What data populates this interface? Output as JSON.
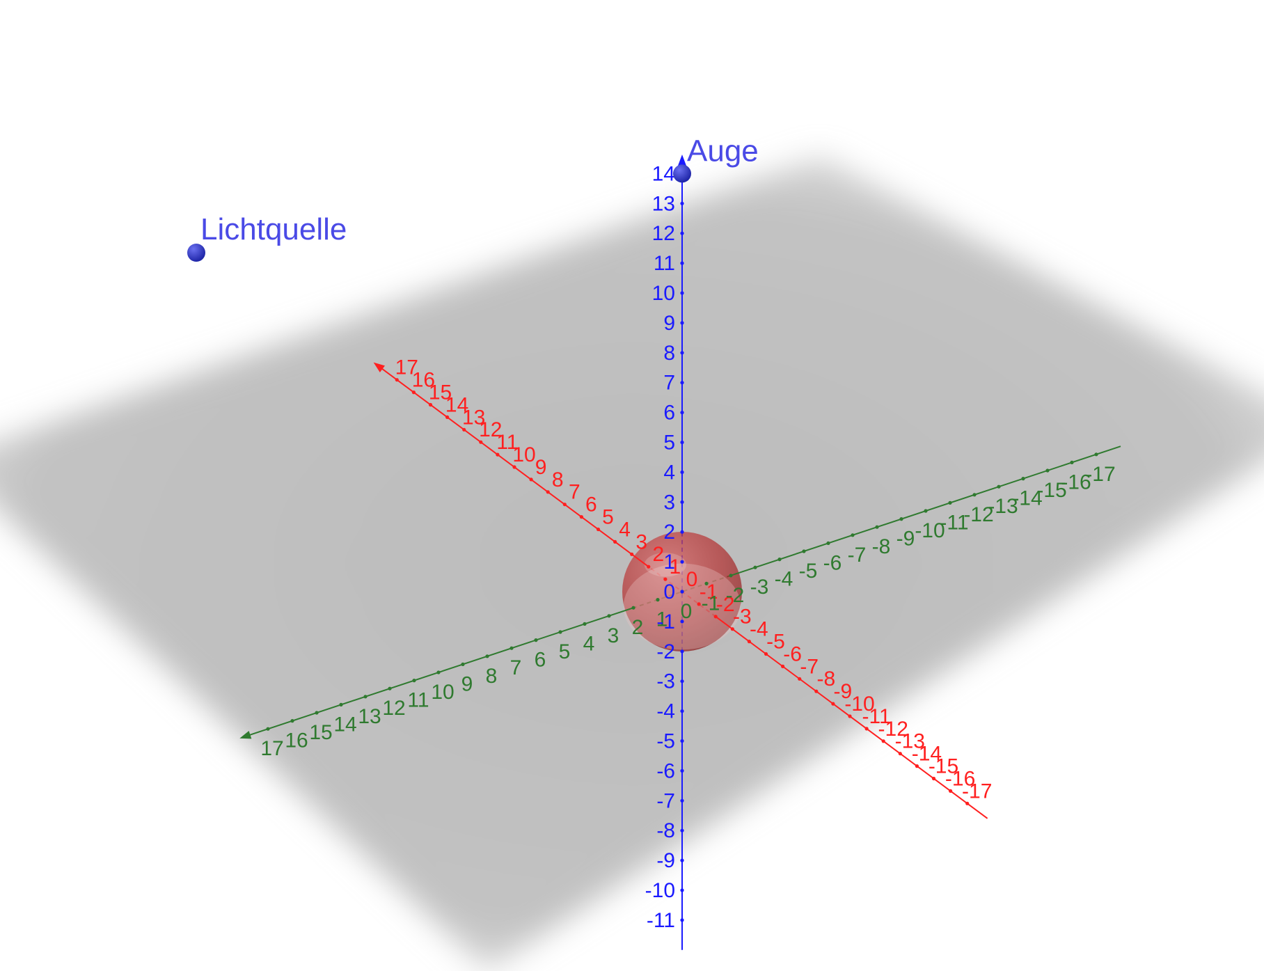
{
  "scene": {
    "colors": {
      "x_axis": "#ff1f1f",
      "y_axis": "#2f7a2f",
      "z_axis": "#1a1aff",
      "point": "#2e35c9",
      "point_label": "#4a4ae6",
      "sphere": "#b32d2d",
      "plane": "#b8b8b8"
    },
    "x_axis": {
      "name": "x-axis",
      "min": -17,
      "max": 17
    },
    "y_axis": {
      "name": "y-axis",
      "min": -17,
      "max": 17
    },
    "z_axis": {
      "name": "z-axis",
      "min": -11,
      "max": 14
    },
    "points": [
      {
        "id": "auge",
        "label": "Auge",
        "icon": "point-icon"
      },
      {
        "id": "lichtquelle",
        "label": "Lichtquelle",
        "icon": "point-icon"
      }
    ],
    "sphere": {
      "center": [
        0,
        0,
        0
      ],
      "radius": 2
    },
    "plane": {
      "equation": "z = 0"
    }
  }
}
